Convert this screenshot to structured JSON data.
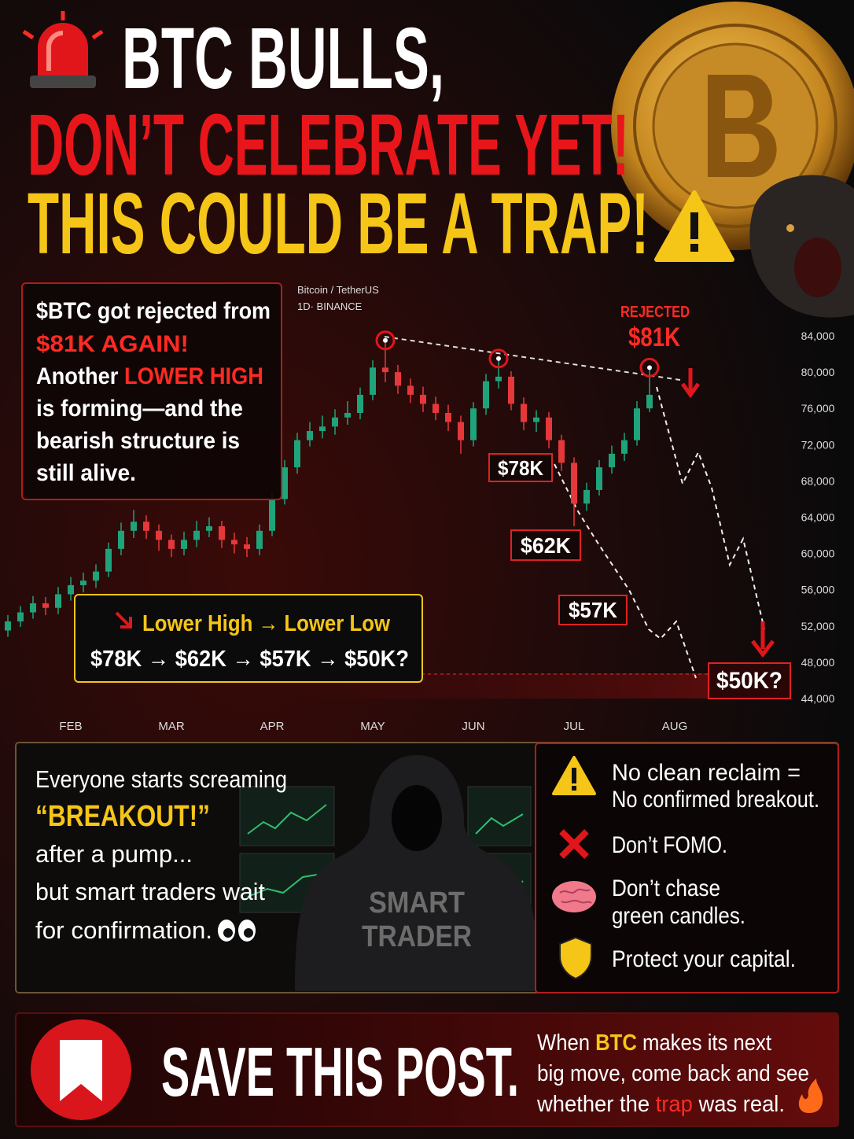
{
  "header": {
    "line1": "BTC BULLS,",
    "line2": "DON’T CELEBRATE YET!",
    "line3": "THIS COULD BE A TRAP!"
  },
  "intro": [
    [
      "$BTC got rejected from"
    ],
    [
      "$81K AGAIN!"
    ],
    [
      "Another ",
      "LOWER HIGH"
    ],
    [
      "is forming—and the"
    ],
    [
      "bearish structure is"
    ],
    [
      "still alive."
    ]
  ],
  "summary": {
    "title": "Lower High → Lower Low",
    "path": "$78K → $62K → $57K → $50K?"
  },
  "chart_data": {
    "type": "candlestick",
    "title": "Bitcoin / TetherUS",
    "subtitle": "1D· BINANCE",
    "up_color": "#1fa37a",
    "down_color": "#e5383b",
    "categories": [
      null,
      null,
      null,
      null,
      null,
      "FEB",
      null,
      null,
      null,
      null,
      null,
      null,
      null,
      "MAR",
      null,
      null,
      null,
      null,
      null,
      null,
      null,
      "APR",
      null,
      null,
      null,
      null,
      null,
      null,
      null,
      "MAY",
      null,
      null,
      null,
      null,
      null,
      null,
      null,
      "JUN",
      null,
      null,
      null,
      null,
      null,
      null,
      null,
      "JUL",
      null,
      null,
      null,
      null,
      null,
      null,
      null,
      "AUG"
    ],
    "open": [
      51500,
      52500,
      53500,
      54500,
      54000,
      55500,
      56500,
      57000,
      58000,
      60500,
      62500,
      63500,
      62500,
      61500,
      60500,
      61500,
      62500,
      63000,
      61500,
      61000,
      60500,
      62500,
      66000,
      69500,
      72500,
      73500,
      74000,
      75000,
      75500,
      77500,
      80500,
      80000,
      78500,
      77500,
      76500,
      75500,
      74500,
      72500,
      76000,
      79000,
      79500,
      76500,
      74500,
      75000,
      72500,
      70000,
      65500,
      67000,
      69500,
      71000,
      72500,
      76000,
      null,
      null
    ],
    "high": [
      53200,
      54200,
      55300,
      55200,
      56300,
      57400,
      57900,
      58800,
      61200,
      63400,
      64800,
      64200,
      63200,
      62100,
      62400,
      63600,
      64000,
      63600,
      62300,
      61800,
      63200,
      66800,
      70300,
      73300,
      74500,
      75200,
      75900,
      76800,
      78300,
      81300,
      83500,
      80800,
      79300,
      78400,
      77300,
      76400,
      75200,
      76700,
      79800,
      81500,
      80100,
      77200,
      75800,
      75600,
      73100,
      70600,
      67800,
      70300,
      71900,
      73300,
      76800,
      80500,
      null,
      null
    ],
    "low": [
      50800,
      51900,
      52800,
      53200,
      53300,
      54800,
      55700,
      56200,
      57400,
      59800,
      61700,
      61600,
      60300,
      59600,
      59800,
      60700,
      61800,
      60600,
      60000,
      59600,
      59800,
      61900,
      65400,
      68800,
      71800,
      72700,
      73100,
      74200,
      74800,
      76900,
      78900,
      77600,
      76600,
      75600,
      74700,
      73500,
      71000,
      71800,
      75300,
      78200,
      75800,
      73600,
      73400,
      71600,
      69100,
      63000,
      64700,
      66400,
      68800,
      70200,
      71900,
      75600,
      null,
      null
    ],
    "close": [
      52500,
      53500,
      54500,
      54000,
      55500,
      56500,
      57000,
      58000,
      60500,
      62500,
      63500,
      62500,
      61500,
      60500,
      61500,
      62500,
      63000,
      61500,
      61000,
      60500,
      62500,
      66000,
      69500,
      72500,
      73500,
      74000,
      75000,
      75500,
      77500,
      80500,
      80000,
      78500,
      77500,
      76500,
      75500,
      74500,
      72500,
      76000,
      79000,
      79500,
      76500,
      74500,
      75000,
      72500,
      70000,
      65500,
      67000,
      69500,
      71000,
      72500,
      76000,
      77500,
      null,
      null
    ],
    "ylim": [
      43000,
      88000
    ],
    "yticks": [
      {
        "value": 44000,
        "label": "44,000"
      },
      {
        "value": 48000,
        "label": "48,000"
      },
      {
        "value": 52000,
        "label": "52,000"
      },
      {
        "value": 56000,
        "label": "56,000"
      },
      {
        "value": 60000,
        "label": "60,000"
      },
      {
        "value": 64000,
        "label": "64,000"
      },
      {
        "value": 68000,
        "label": "68,000"
      },
      {
        "value": 72000,
        "label": "72,000"
      },
      {
        "value": 76000,
        "label": "76,000"
      },
      {
        "value": 80000,
        "label": "80,000"
      },
      {
        "value": 84000,
        "label": "84,000"
      }
    ],
    "grid": false,
    "annotations": {
      "rejected": "REJECTED",
      "level": "$81K",
      "labels": [
        "$78K",
        "$62K",
        "$57K",
        "$50K?"
      ]
    }
  },
  "story": [
    "Everyone starts screaming",
    "“BREAKOUT!”",
    "after a pump...",
    "but smart traders wait",
    "for confirmation."
  ],
  "hoodie": [
    "SMART",
    "TRADER"
  ],
  "rules": [
    [
      "No clean reclaim =",
      "No confirmed breakout."
    ],
    [
      "Don’t FOMO."
    ],
    [
      "Don’t chase",
      "green candles."
    ],
    [
      "Protect your capital."
    ]
  ],
  "cta": {
    "title": "SAVE THIS POST.",
    "lines": [
      [
        "When ",
        "BTC",
        " makes its next"
      ],
      [
        "big move, come back and see"
      ],
      [
        "whether the ",
        "trap",
        " was real."
      ]
    ]
  }
}
